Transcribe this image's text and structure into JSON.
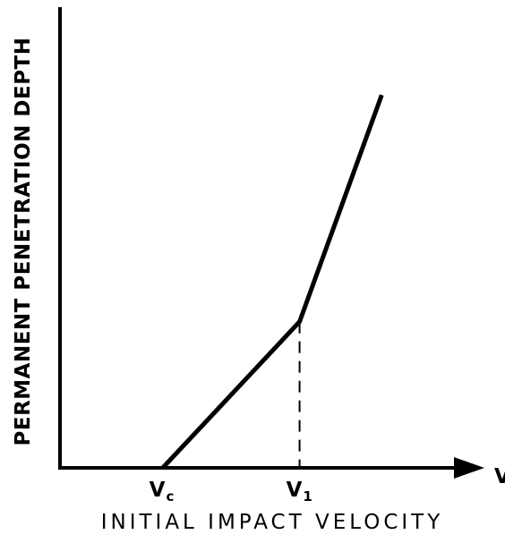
{
  "chart_data": {
    "type": "line",
    "ylabel": "PERMANENT PENETRATION DEPTH",
    "xlabel": "INITIAL IMPACT VELOCITY",
    "x_axis_symbol": "V",
    "ticks": [
      {
        "main": "V",
        "sub": "c",
        "x": 1.0
      },
      {
        "main": "V",
        "sub": "1",
        "x": 3.0
      }
    ],
    "series": [
      {
        "points": [
          {
            "x": 1.0,
            "y": 0.0
          },
          {
            "x": 3.0,
            "y": 1.0
          },
          {
            "x": 4.2,
            "y": 2.55
          }
        ]
      }
    ],
    "reference_line": {
      "x": 3.0,
      "style": "dashed"
    },
    "xlim": [
      -0.5,
      5.7
    ],
    "ylim": [
      0,
      3.2
    ],
    "grid": false,
    "colors": {
      "line": "#000000",
      "background": "#ffffff"
    }
  }
}
